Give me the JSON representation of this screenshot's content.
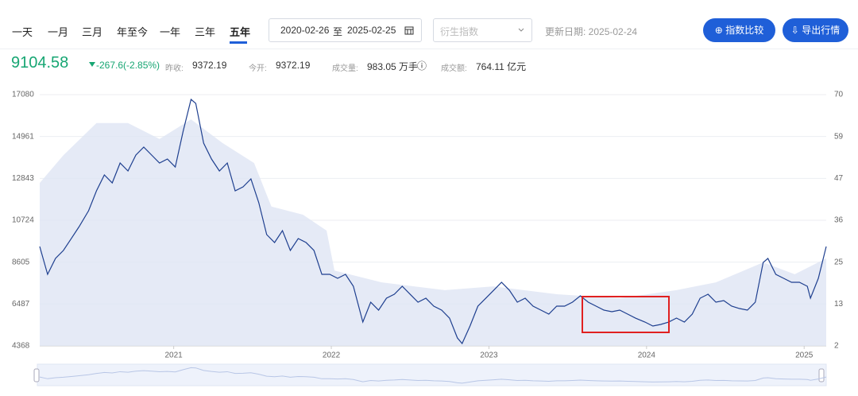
{
  "toolbar": {
    "tabs": [
      "一天",
      "一月",
      "三月",
      "年至今",
      "一年",
      "三年",
      "五年"
    ],
    "active_tab": "五年",
    "date_from": "2020-02-26",
    "date_sep": "至",
    "date_to": "2025-02-25",
    "dropdown_placeholder": "衍生指数",
    "update_date": "更新日期: 2025-02-24",
    "buttons": [
      "指数比较",
      "导出行情"
    ]
  },
  "quote": {
    "price": "9104.58",
    "change": "-267.6(-2.85%)",
    "stats": [
      {
        "label": "昨收:",
        "value": "9372.19"
      },
      {
        "label": "今开:",
        "value": "9372.19"
      },
      {
        "label": "成交量:",
        "value": "983.05 万手"
      },
      {
        "label": "成交额:",
        "value": "764.11 亿元"
      }
    ]
  },
  "chart_data": {
    "type": "line",
    "x": [
      2020.15,
      2020.2,
      2020.25,
      2020.3,
      2020.35,
      2020.4,
      2020.46,
      2020.51,
      2020.56,
      2020.61,
      2020.66,
      2020.71,
      2020.76,
      2020.81,
      2020.86,
      2020.91,
      2020.96,
      2021.01,
      2021.06,
      2021.11,
      2021.14,
      2021.19,
      2021.24,
      2021.29,
      2021.34,
      2021.39,
      2021.44,
      2021.49,
      2021.54,
      2021.59,
      2021.64,
      2021.69,
      2021.74,
      2021.79,
      2021.84,
      2021.89,
      2021.94,
      2021.99,
      2022.04,
      2022.09,
      2022.14,
      2022.2,
      2022.25,
      2022.3,
      2022.35,
      2022.4,
      2022.45,
      2022.5,
      2022.55,
      2022.6,
      2022.65,
      2022.7,
      2022.75,
      2022.8,
      2022.83,
      2022.88,
      2022.93,
      2022.98,
      2023.03,
      2023.08,
      2023.13,
      2023.18,
      2023.23,
      2023.28,
      2023.33,
      2023.38,
      2023.43,
      2023.48,
      2023.53,
      2023.58,
      2023.63,
      2023.68,
      2023.73,
      2023.78,
      2023.83,
      2023.88,
      2023.93,
      2023.99,
      2024.04,
      2024.09,
      2024.14,
      2024.19,
      2024.24,
      2024.29,
      2024.34,
      2024.39,
      2024.44,
      2024.49,
      2024.54,
      2024.59,
      2024.64,
      2024.69,
      2024.74,
      2024.77,
      2024.82,
      2024.87,
      2024.92,
      2024.97,
      2025.02,
      2025.04,
      2025.09,
      2025.14
    ],
    "series": [
      {
        "color": "#1e3f8f",
        "values": [
          9396,
          7988,
          8793,
          9195,
          9798,
          10402,
          11206,
          12212,
          13017,
          12614,
          13620,
          13218,
          14023,
          14425,
          14023,
          13620,
          13821,
          13419,
          15229,
          16839,
          16637,
          14626,
          13821,
          13218,
          13620,
          12212,
          12413,
          12816,
          11609,
          10000,
          9597,
          10201,
          9195,
          9798,
          9597,
          9195,
          7988,
          7988,
          7787,
          7988,
          7385,
          5574,
          6580,
          6178,
          6781,
          6982,
          7385,
          6982,
          6580,
          6781,
          6379,
          6178,
          5775,
          4770,
          4488,
          5373,
          6379,
          6781,
          7183,
          7586,
          7183,
          6580,
          6781,
          6379,
          6178,
          5977,
          6379,
          6379,
          6580,
          6902,
          6580,
          6379,
          6178,
          6097,
          6178,
          5977,
          5775,
          5574,
          5373,
          5454,
          5574,
          5775,
          5574,
          5977,
          6781,
          6982,
          6580,
          6660,
          6379,
          6258,
          6178,
          6580,
          8591,
          8793,
          7988,
          7787,
          7586,
          7586,
          7385,
          6781,
          7787,
          9396
        ]
      },
      {
        "type": "area",
        "axis": "y2",
        "color": "#dfe5f4",
        "x": [
          2020.15,
          2020.3,
          2020.51,
          2020.71,
          2020.91,
          2021.11,
          2021.31,
          2021.51,
          2021.62,
          2021.82,
          2021.97,
          2022.02,
          2022.32,
          2022.72,
          2023.03,
          2023.43,
          2023.83,
          2024.19,
          2024.44,
          2024.74,
          2024.94,
          2025.14
        ],
        "values": [
          46.1,
          53.6,
          62.3,
          62.3,
          58.0,
          63.3,
          56.9,
          51.5,
          39.7,
          37.5,
          33.2,
          22.4,
          19.2,
          17.1,
          18.1,
          16.0,
          14.9,
          17.1,
          19.2,
          24.6,
          21.4,
          25.7
        ]
      }
    ],
    "xlim": [
      2020.15,
      2025.14
    ],
    "xticks": [
      2021,
      2022,
      2023,
      2024,
      2025
    ],
    "ylim": [
      4368,
      17080
    ],
    "yticks": [
      4368,
      6487,
      8605,
      10724,
      12843,
      14961,
      17080
    ],
    "y2lim": [
      2,
      70
    ],
    "y2ticks": [
      2,
      {
        "value": 13.33,
        "label": "13"
      },
      {
        "value": 24.67,
        "label": "25"
      },
      36,
      {
        "value": 47.33,
        "label": "47"
      },
      {
        "value": 58.67,
        "label": "59"
      },
      70
    ],
    "grid": true
  }
}
